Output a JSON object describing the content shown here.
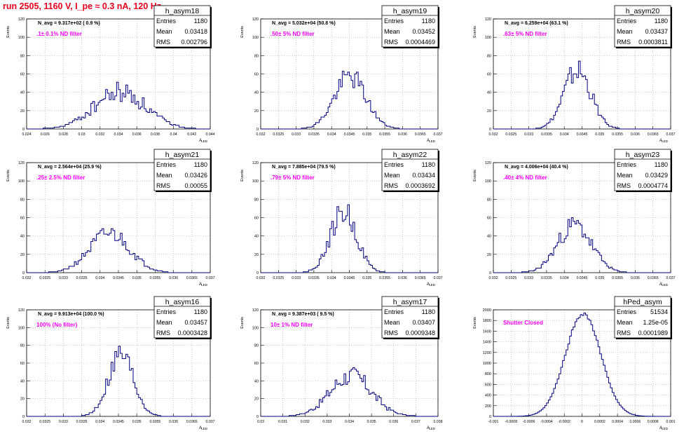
{
  "header": {
    "run_title": "run 2505,  1160 V, I_pe ≈ 0.3 nA, 120 Hz"
  },
  "common": {
    "ylabel": "Events",
    "xlabel": "A",
    "xlabel_sub": "LED",
    "stats_labels": [
      "Entries",
      "Mean",
      "RMS"
    ]
  },
  "colors": {
    "hist": "#000080",
    "filter_text": "#ff00ff",
    "title_text": "#e8001c",
    "grid": "#aaaaaa"
  },
  "chart_data": [
    {
      "type": "bar",
      "name": "h_asym18",
      "navg": "N_avg = 9.317e+02 ( 0.9 %)",
      "filter": ".1± 0.1% ND filter",
      "stats": {
        "entries": "1180",
        "mean": "0.03418",
        "rms": "0.002796"
      },
      "xlim": [
        0.024,
        0.044
      ],
      "xticks": [
        0.024,
        0.026,
        0.028,
        0.03,
        0.032,
        0.034,
        0.036,
        0.038,
        0.04,
        0.042,
        0.044
      ],
      "xtick_labels": [
        "0.024",
        "0.026",
        "0.028",
        "0.03",
        "0.032",
        "0.034",
        "0.036",
        "0.038",
        "0.04",
        "0.042",
        "0.044"
      ],
      "ylim": [
        0,
        120
      ],
      "yticks": [
        0,
        20,
        40,
        60,
        80,
        100,
        120
      ],
      "mean": 0.03418,
      "rms": 0.002796,
      "peak": 40,
      "noise": 0.3,
      "seed": 18
    },
    {
      "type": "bar",
      "name": "h_asym19",
      "navg": "N_avg = 5.032e+04 (50.8 %)",
      "filter": ".50± 5% ND filter",
      "stats": {
        "entries": "1180",
        "mean": "0.03452",
        "rms": "0.0004469"
      },
      "xlim": [
        0.032,
        0.037
      ],
      "xticks": [
        0.032,
        0.0325,
        0.033,
        0.0335,
        0.034,
        0.0345,
        0.035,
        0.0355,
        0.036,
        0.0365,
        0.037
      ],
      "xtick_labels": [
        "0.032",
        "0.0325",
        "0.033",
        "0.0335",
        "0.034",
        "0.0345",
        "0.035",
        "0.0355",
        "0.036",
        "0.0365",
        "0.037"
      ],
      "ylim": [
        0,
        120
      ],
      "yticks": [
        0,
        20,
        40,
        60,
        80,
        100,
        120
      ],
      "mean": 0.03452,
      "rms": 0.0004469,
      "peak": 57,
      "noise": 0.22,
      "seed": 19
    },
    {
      "type": "bar",
      "name": "h_asym20",
      "navg": "N_avg = 6.259e+04 (63.1 %)",
      "filter": ".63± 5% ND filter",
      "stats": {
        "entries": "1180",
        "mean": "0.03437",
        "rms": "0.0003811"
      },
      "xlim": [
        0.032,
        0.037
      ],
      "xticks": [
        0.032,
        0.0325,
        0.033,
        0.0335,
        0.034,
        0.0345,
        0.035,
        0.0355,
        0.036,
        0.0365,
        0.037
      ],
      "xtick_labels": [
        "0.032",
        "0.0325",
        "0.033",
        "0.0335",
        "0.034",
        "0.0345",
        "0.035",
        "0.0355",
        "0.036",
        "0.0365",
        "0.037"
      ],
      "ylim": [
        0,
        120
      ],
      "yticks": [
        0,
        20,
        40,
        60,
        80,
        100,
        120
      ],
      "mean": 0.03437,
      "rms": 0.0003811,
      "peak": 64,
      "noise": 0.22,
      "seed": 20
    },
    {
      "type": "bar",
      "name": "h_asym21",
      "navg": "N_avg = 2.564e+04 (25.9 %)",
      "filter": ".25± 2.5% ND filter",
      "stats": {
        "entries": "1180",
        "mean": "0.03426",
        "rms": "0.00055"
      },
      "xlim": [
        0.032,
        0.037
      ],
      "xticks": [
        0.032,
        0.0325,
        0.033,
        0.0335,
        0.034,
        0.0345,
        0.035,
        0.0355,
        0.036,
        0.0365,
        0.037
      ],
      "xtick_labels": [
        "0.032",
        "0.0325",
        "0.033",
        "0.0335",
        "0.034",
        "0.0345",
        "0.035",
        "0.0355",
        "0.036",
        "0.0365",
        "0.037"
      ],
      "ylim": [
        0,
        120
      ],
      "yticks": [
        0,
        20,
        40,
        60,
        80,
        100,
        120
      ],
      "mean": 0.03426,
      "rms": 0.00055,
      "peak": 43,
      "noise": 0.22,
      "seed": 21
    },
    {
      "type": "bar",
      "name": "h_asym22",
      "navg": "N_avg = 7.885e+04 (79.5 %)",
      "filter": ".79± 5% ND filter",
      "stats": {
        "entries": "1180",
        "mean": "0.03434",
        "rms": "0.0003692"
      },
      "xlim": [
        0.032,
        0.037
      ],
      "xticks": [
        0.032,
        0.0325,
        0.033,
        0.0335,
        0.034,
        0.0345,
        0.035,
        0.0355,
        0.036,
        0.0365,
        0.037
      ],
      "xtick_labels": [
        "0.032",
        "0.0325",
        "0.033",
        "0.0335",
        "0.034",
        "0.0345",
        "0.035",
        "0.0355",
        "0.036",
        "0.0365",
        "0.037"
      ],
      "ylim": [
        0,
        120
      ],
      "yticks": [
        0,
        20,
        40,
        60,
        80,
        100,
        120
      ],
      "mean": 0.03434,
      "rms": 0.0003692,
      "peak": 66,
      "noise": 0.22,
      "seed": 22
    },
    {
      "type": "bar",
      "name": "h_asym23",
      "navg": "N_avg = 4.006e+04 (40.4 %)",
      "filter": ".40± 4% ND filter",
      "stats": {
        "entries": "1180",
        "mean": "0.03429",
        "rms": "0.0004774"
      },
      "xlim": [
        0.032,
        0.037
      ],
      "xticks": [
        0.032,
        0.0325,
        0.033,
        0.0335,
        0.034,
        0.0345,
        0.035,
        0.0355,
        0.036,
        0.0365,
        0.037
      ],
      "xtick_labels": [
        "0.032",
        "0.0325",
        "0.033",
        "0.0335",
        "0.034",
        "0.0345",
        "0.035",
        "0.0355",
        "0.036",
        "0.0365",
        "0.037"
      ],
      "ylim": [
        0,
        120
      ],
      "yticks": [
        0,
        20,
        40,
        60,
        80,
        100,
        120
      ],
      "mean": 0.03429,
      "rms": 0.0004774,
      "peak": 52,
      "noise": 0.22,
      "seed": 23
    },
    {
      "type": "bar",
      "name": "h_asym16",
      "navg": "N_avg = 9.913e+04 (100.0 %)",
      "filter": "100% (No filter)",
      "stats": {
        "entries": "1180",
        "mean": "0.03457",
        "rms": "0.0003428"
      },
      "xlim": [
        0.032,
        0.037
      ],
      "xticks": [
        0.032,
        0.0325,
        0.033,
        0.0335,
        0.034,
        0.0345,
        0.035,
        0.0355,
        0.036,
        0.0365,
        0.037
      ],
      "xtick_labels": [
        "0.032",
        "0.0325",
        "0.033",
        "0.0335",
        "0.034",
        "0.0345",
        "0.035",
        "0.0355",
        "0.036",
        "0.0365",
        "0.037"
      ],
      "ylim": [
        0,
        120
      ],
      "yticks": [
        0,
        20,
        40,
        60,
        80,
        100,
        120
      ],
      "mean": 0.03457,
      "rms": 0.0003428,
      "peak": 70,
      "noise": 0.22,
      "seed": 16
    },
    {
      "type": "bar",
      "name": "h_asym17",
      "navg": "N_avg = 9.387e+03 ( 9.5 %)",
      "filter": "10± 1% ND filter",
      "stats": {
        "entries": "1180",
        "mean": "0.03407",
        "rms": "0.0009348"
      },
      "xlim": [
        0.03,
        0.038
      ],
      "xticks": [
        0.03,
        0.031,
        0.032,
        0.033,
        0.034,
        0.035,
        0.036,
        0.037,
        0.038
      ],
      "xtick_labels": [
        "0.03",
        "0.031",
        "0.032",
        "0.033",
        "0.034",
        "0.035",
        "0.036",
        "0.037",
        "0.038"
      ],
      "ylim": [
        0,
        120
      ],
      "yticks": [
        0,
        20,
        40,
        60,
        80,
        100,
        120
      ],
      "mean": 0.03407,
      "rms": 0.0009348,
      "peak": 46,
      "noise": 0.25,
      "seed": 17
    },
    {
      "type": "bar",
      "name": "hPed_asym",
      "navg": "",
      "filter": "Shutter Closed",
      "stats": {
        "entries": "51534",
        "mean": "1.25e-05",
        "rms": "0.0001989"
      },
      "xlim": [
        -0.001,
        0.001
      ],
      "xticks": [
        -0.001,
        -0.0008,
        -0.0006,
        -0.0004,
        -0.0002,
        0,
        0.0002,
        0.0004,
        0.0006,
        0.0008,
        0.001
      ],
      "xtick_labels": [
        "-0.001",
        "-0.0008",
        "-0.0006",
        "-0.0004",
        "-0.0002",
        "0",
        "0.0002",
        "0.0004",
        "0.0006",
        "0.0008",
        "0.001"
      ],
      "ylim": [
        0,
        2000
      ],
      "yticks": [
        0,
        200,
        400,
        600,
        800,
        1000,
        1200,
        1400,
        1600,
        1800,
        2000
      ],
      "mean": 1.25e-05,
      "rms": 0.0001989,
      "peak": 1930,
      "noise": 0.02,
      "seed": 99
    }
  ]
}
